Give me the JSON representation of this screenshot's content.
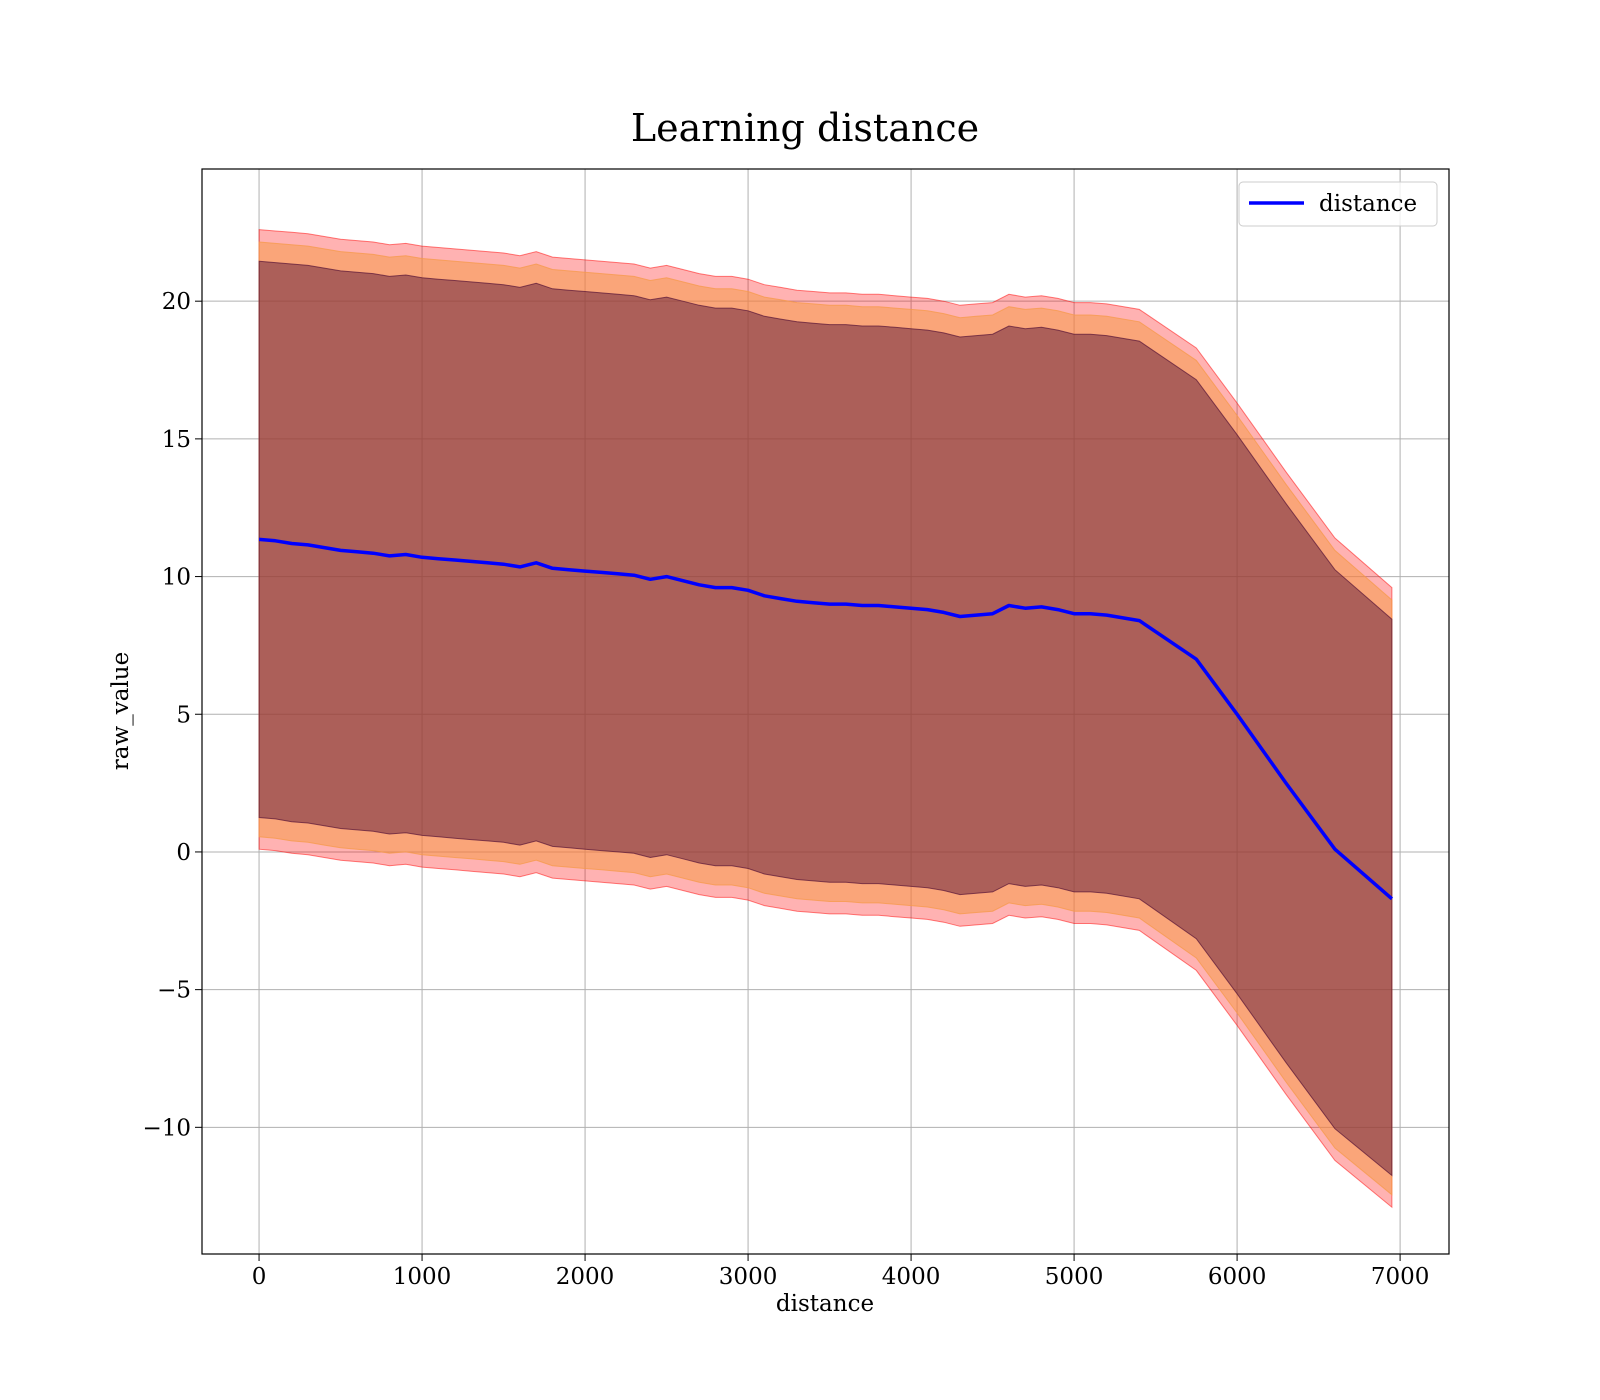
{
  "chart_data": {
    "type": "line",
    "title": "Learning distance",
    "xlabel": "distance",
    "ylabel": "raw_value",
    "xlim": [
      -350,
      7300
    ],
    "ylim": [
      -14.6,
      24.8
    ],
    "xticks": [
      0,
      1000,
      2000,
      3000,
      4000,
      5000,
      6000,
      7000
    ],
    "xtick_labels": [
      "0",
      "1000",
      "2000",
      "3000",
      "4000",
      "5000",
      "6000",
      "7000"
    ],
    "yticks": [
      -10,
      -5,
      0,
      5,
      10,
      15,
      20
    ],
    "ytick_labels": [
      "−10",
      "−5",
      "0",
      "5",
      "10",
      "15",
      "20"
    ],
    "grid": true,
    "legend": {
      "position": "top-right",
      "entries": [
        "distance"
      ]
    },
    "colors": {
      "line": "#0000ff",
      "band_outer": "#ff0000",
      "band_middle": "#f59a4a",
      "band_inner": "#4d0a33",
      "grid": "#b0b0b0"
    },
    "x": [
      0,
      100,
      200,
      300,
      400,
      500,
      600,
      700,
      800,
      900,
      1000,
      1100,
      1200,
      1300,
      1400,
      1500,
      1600,
      1700,
      1800,
      1900,
      2000,
      2100,
      2200,
      2300,
      2400,
      2500,
      2600,
      2700,
      2800,
      2900,
      3000,
      3100,
      3200,
      3300,
      3400,
      3500,
      3600,
      3700,
      3800,
      3900,
      4000,
      4100,
      4200,
      4300,
      4400,
      4500,
      4600,
      4700,
      4800,
      4900,
      5000,
      5100,
      5200,
      5400,
      5750,
      6000,
      6300,
      6600,
      6950
    ],
    "series": [
      {
        "name": "distance",
        "values": [
          11.35,
          11.3,
          11.2,
          11.15,
          11.05,
          10.95,
          10.9,
          10.85,
          10.75,
          10.8,
          10.7,
          10.65,
          10.6,
          10.55,
          10.5,
          10.45,
          10.35,
          10.5,
          10.3,
          10.25,
          10.2,
          10.15,
          10.1,
          10.05,
          9.9,
          10.0,
          9.85,
          9.7,
          9.6,
          9.6,
          9.5,
          9.3,
          9.2,
          9.1,
          9.05,
          9.0,
          9.0,
          8.95,
          8.95,
          8.9,
          8.85,
          8.8,
          8.7,
          8.55,
          8.6,
          8.65,
          8.95,
          8.85,
          8.9,
          8.8,
          8.65,
          8.65,
          8.6,
          8.4,
          7.0,
          5.0,
          2.5,
          0.1,
          -1.7
        ]
      }
    ],
    "bands": [
      {
        "name": "outer",
        "upper": [
          22.6,
          22.55,
          22.5,
          22.45,
          22.35,
          22.25,
          22.2,
          22.15,
          22.05,
          22.1,
          22.0,
          21.95,
          21.9,
          21.85,
          21.8,
          21.75,
          21.65,
          21.8,
          21.6,
          21.55,
          21.5,
          21.45,
          21.4,
          21.35,
          21.2,
          21.3,
          21.15,
          21.0,
          20.9,
          20.9,
          20.8,
          20.6,
          20.5,
          20.4,
          20.35,
          20.3,
          20.3,
          20.25,
          20.25,
          20.2,
          20.15,
          20.1,
          20.0,
          19.85,
          19.9,
          19.95,
          20.25,
          20.15,
          20.2,
          20.1,
          19.95,
          19.95,
          19.9,
          19.7,
          18.3,
          16.3,
          13.8,
          11.4,
          9.6
        ],
        "lower": [
          0.1,
          0.05,
          -0.05,
          -0.1,
          -0.2,
          -0.3,
          -0.35,
          -0.4,
          -0.5,
          -0.45,
          -0.55,
          -0.6,
          -0.65,
          -0.7,
          -0.75,
          -0.8,
          -0.9,
          -0.75,
          -0.95,
          -1.0,
          -1.05,
          -1.1,
          -1.15,
          -1.2,
          -1.35,
          -1.25,
          -1.4,
          -1.55,
          -1.65,
          -1.65,
          -1.75,
          -1.95,
          -2.05,
          -2.15,
          -2.2,
          -2.25,
          -2.25,
          -2.3,
          -2.3,
          -2.35,
          -2.4,
          -2.45,
          -2.55,
          -2.7,
          -2.65,
          -2.6,
          -2.3,
          -2.4,
          -2.35,
          -2.45,
          -2.6,
          -2.6,
          -2.65,
          -2.85,
          -4.3,
          -6.3,
          -8.8,
          -11.2,
          -12.9
        ]
      },
      {
        "name": "middle",
        "upper": [
          22.15,
          22.1,
          22.05,
          22.0,
          21.9,
          21.8,
          21.75,
          21.7,
          21.6,
          21.65,
          21.55,
          21.5,
          21.45,
          21.4,
          21.35,
          21.3,
          21.2,
          21.35,
          21.15,
          21.1,
          21.05,
          21.0,
          20.95,
          20.9,
          20.75,
          20.85,
          20.7,
          20.55,
          20.45,
          20.45,
          20.35,
          20.15,
          20.05,
          19.95,
          19.9,
          19.85,
          19.85,
          19.8,
          19.8,
          19.75,
          19.7,
          19.65,
          19.55,
          19.4,
          19.45,
          19.5,
          19.8,
          19.7,
          19.75,
          19.65,
          19.5,
          19.5,
          19.45,
          19.25,
          17.85,
          15.85,
          13.35,
          10.95,
          9.15
        ],
        "lower": [
          0.55,
          0.5,
          0.4,
          0.35,
          0.25,
          0.15,
          0.1,
          0.05,
          -0.05,
          0.0,
          -0.1,
          -0.15,
          -0.2,
          -0.25,
          -0.3,
          -0.35,
          -0.45,
          -0.3,
          -0.5,
          -0.55,
          -0.6,
          -0.65,
          -0.7,
          -0.75,
          -0.9,
          -0.8,
          -0.95,
          -1.1,
          -1.2,
          -1.2,
          -1.3,
          -1.5,
          -1.6,
          -1.7,
          -1.75,
          -1.8,
          -1.8,
          -1.85,
          -1.85,
          -1.9,
          -1.95,
          -2.0,
          -2.1,
          -2.25,
          -2.2,
          -2.15,
          -1.85,
          -1.95,
          -1.9,
          -2.0,
          -2.15,
          -2.15,
          -2.2,
          -2.4,
          -3.85,
          -5.85,
          -8.35,
          -10.75,
          -12.45
        ]
      },
      {
        "name": "inner",
        "upper": [
          21.45,
          21.4,
          21.35,
          21.3,
          21.2,
          21.1,
          21.05,
          21.0,
          20.9,
          20.95,
          20.85,
          20.8,
          20.75,
          20.7,
          20.65,
          20.6,
          20.5,
          20.65,
          20.45,
          20.4,
          20.35,
          20.3,
          20.25,
          20.2,
          20.05,
          20.15,
          20.0,
          19.85,
          19.75,
          19.75,
          19.65,
          19.45,
          19.35,
          19.25,
          19.2,
          19.15,
          19.15,
          19.1,
          19.1,
          19.05,
          19.0,
          18.95,
          18.85,
          18.7,
          18.75,
          18.8,
          19.1,
          19.0,
          19.05,
          18.95,
          18.8,
          18.8,
          18.75,
          18.55,
          17.15,
          15.15,
          12.65,
          10.25,
          8.45
        ],
        "lower": [
          1.25,
          1.2,
          1.1,
          1.05,
          0.95,
          0.85,
          0.8,
          0.75,
          0.65,
          0.7,
          0.6,
          0.55,
          0.5,
          0.45,
          0.4,
          0.35,
          0.25,
          0.4,
          0.2,
          0.15,
          0.1,
          0.05,
          0.0,
          -0.05,
          -0.2,
          -0.1,
          -0.25,
          -0.4,
          -0.5,
          -0.5,
          -0.6,
          -0.8,
          -0.9,
          -1.0,
          -1.05,
          -1.1,
          -1.1,
          -1.15,
          -1.15,
          -1.2,
          -1.25,
          -1.3,
          -1.4,
          -1.55,
          -1.5,
          -1.45,
          -1.15,
          -1.25,
          -1.2,
          -1.3,
          -1.45,
          -1.45,
          -1.5,
          -1.7,
          -3.15,
          -5.15,
          -7.65,
          -10.05,
          -11.75
        ]
      }
    ]
  }
}
